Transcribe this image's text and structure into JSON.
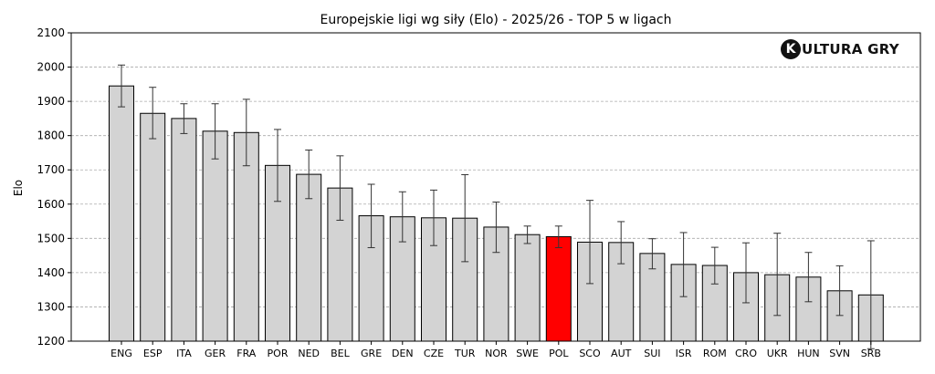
{
  "chart_data": {
    "type": "bar",
    "title": "Europejskie ligi wg siły (Elo) - 2025/26 - TOP 5 w ligach",
    "xlabel": "",
    "ylabel": "Elo",
    "ylim": [
      1200,
      2100
    ],
    "yticks": [
      1200,
      1300,
      1400,
      1500,
      1600,
      1700,
      1800,
      1900,
      2000,
      2100
    ],
    "grid": "horizontal dashed",
    "categories": [
      "ENG",
      "ESP",
      "ITA",
      "GER",
      "FRA",
      "POR",
      "NED",
      "BEL",
      "GRE",
      "DEN",
      "CZE",
      "TUR",
      "NOR",
      "SWE",
      "POL",
      "SCO",
      "AUT",
      "SUI",
      "ISR",
      "ROM",
      "CRO",
      "UKR",
      "HUN",
      "SVN",
      "SRB"
    ],
    "values": [
      1945,
      1865,
      1850,
      1813,
      1809,
      1713,
      1687,
      1647,
      1566,
      1563,
      1560,
      1559,
      1533,
      1511,
      1505,
      1489,
      1488,
      1456,
      1424,
      1421,
      1400,
      1394,
      1387,
      1347,
      1335
    ],
    "error_low": [
      1884,
      1791,
      1806,
      1732,
      1712,
      1608,
      1616,
      1553,
      1473,
      1490,
      1479,
      1432,
      1459,
      1485,
      1473,
      1368,
      1426,
      1411,
      1330,
      1367,
      1312,
      1275,
      1315,
      1275,
      1178
    ],
    "error_high": [
      2006,
      1941,
      1893,
      1893,
      1906,
      1818,
      1758,
      1741,
      1658,
      1636,
      1641,
      1686,
      1606,
      1536,
      1536,
      1611,
      1549,
      1499,
      1517,
      1474,
      1487,
      1515,
      1459,
      1420,
      1493
    ],
    "highlight": "POL",
    "colors": {
      "bar": "#d3d3d3",
      "highlight": "#ff0000",
      "edge": "#000000",
      "grid": "#aaaaaa"
    }
  },
  "logo": {
    "k": "K",
    "text": "ULTURA GRY"
  }
}
